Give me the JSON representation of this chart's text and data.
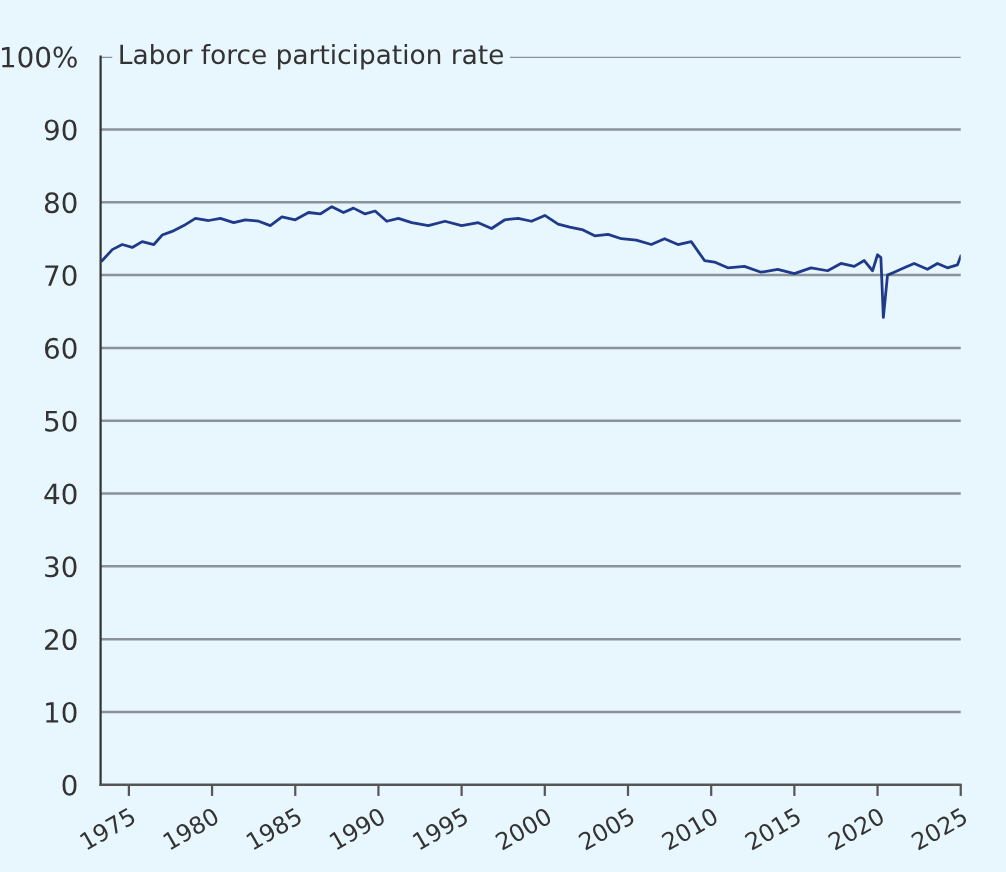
{
  "chart_data": {
    "type": "line",
    "title": "Labor force participation rate",
    "x": [
      1973.4,
      1974.0,
      1974.6,
      1975.2,
      1975.8,
      1976.5,
      1977.0,
      1977.6,
      1978.3,
      1979.0,
      1979.8,
      1980.5,
      1981.3,
      1982.0,
      1982.8,
      1983.5,
      1984.2,
      1985.0,
      1985.8,
      1986.5,
      1987.2,
      1987.9,
      1988.5,
      1989.2,
      1989.8,
      1990.5,
      1991.2,
      1992.0,
      1993.0,
      1994.0,
      1995.0,
      1996.0,
      1996.8,
      1997.6,
      1998.4,
      1999.2,
      2000.0,
      2000.8,
      2001.5,
      2002.3,
      2003.0,
      2003.8,
      2004.6,
      2005.5,
      2006.4,
      2007.2,
      2008.0,
      2008.8,
      2009.6,
      2010.2,
      2011.0,
      2012.0,
      2013.0,
      2014.0,
      2015.0,
      2016.0,
      2017.0,
      2017.8,
      2018.6,
      2019.2,
      2019.7,
      2020.0,
      2020.2,
      2020.35,
      2020.6,
      2021.0,
      2021.6,
      2022.2,
      2023.0,
      2023.6,
      2024.2,
      2024.8,
      2025.0
    ],
    "series": [
      {
        "color": "#1f3a8a",
        "values": [
          72.0,
          73.5,
          74.2,
          73.8,
          74.6,
          74.2,
          75.5,
          76.0,
          76.8,
          77.8,
          77.5,
          77.8,
          77.2,
          77.6,
          77.4,
          76.8,
          78.0,
          77.6,
          78.6,
          78.4,
          79.4,
          78.6,
          79.2,
          78.4,
          78.8,
          77.4,
          77.8,
          77.2,
          76.8,
          77.4,
          76.8,
          77.2,
          76.4,
          77.6,
          77.8,
          77.4,
          78.2,
          77.0,
          76.6,
          76.2,
          75.4,
          75.6,
          75.0,
          74.8,
          74.2,
          75.0,
          74.2,
          74.6,
          72.0,
          71.8,
          71.0,
          71.2,
          70.4,
          70.8,
          70.2,
          71.0,
          70.6,
          71.6,
          71.2,
          72.0,
          70.6,
          72.8,
          72.4,
          64.2,
          70.0,
          70.4,
          71.0,
          71.6,
          70.8,
          71.6,
          71.0,
          71.4,
          72.6
        ]
      }
    ],
    "xlim": [
      1973.3,
      2025
    ],
    "xticks": [
      1975,
      1980,
      1985,
      1990,
      1995,
      2000,
      2005,
      2010,
      2015,
      2020,
      2025
    ],
    "ylim": [
      0,
      100
    ],
    "yticks": [
      0,
      10,
      20,
      30,
      40,
      50,
      60,
      70,
      80,
      90,
      {
        "value": 100,
        "label": "100%"
      }
    ],
    "grid": "y",
    "line_style": "solid",
    "marker": "none"
  }
}
